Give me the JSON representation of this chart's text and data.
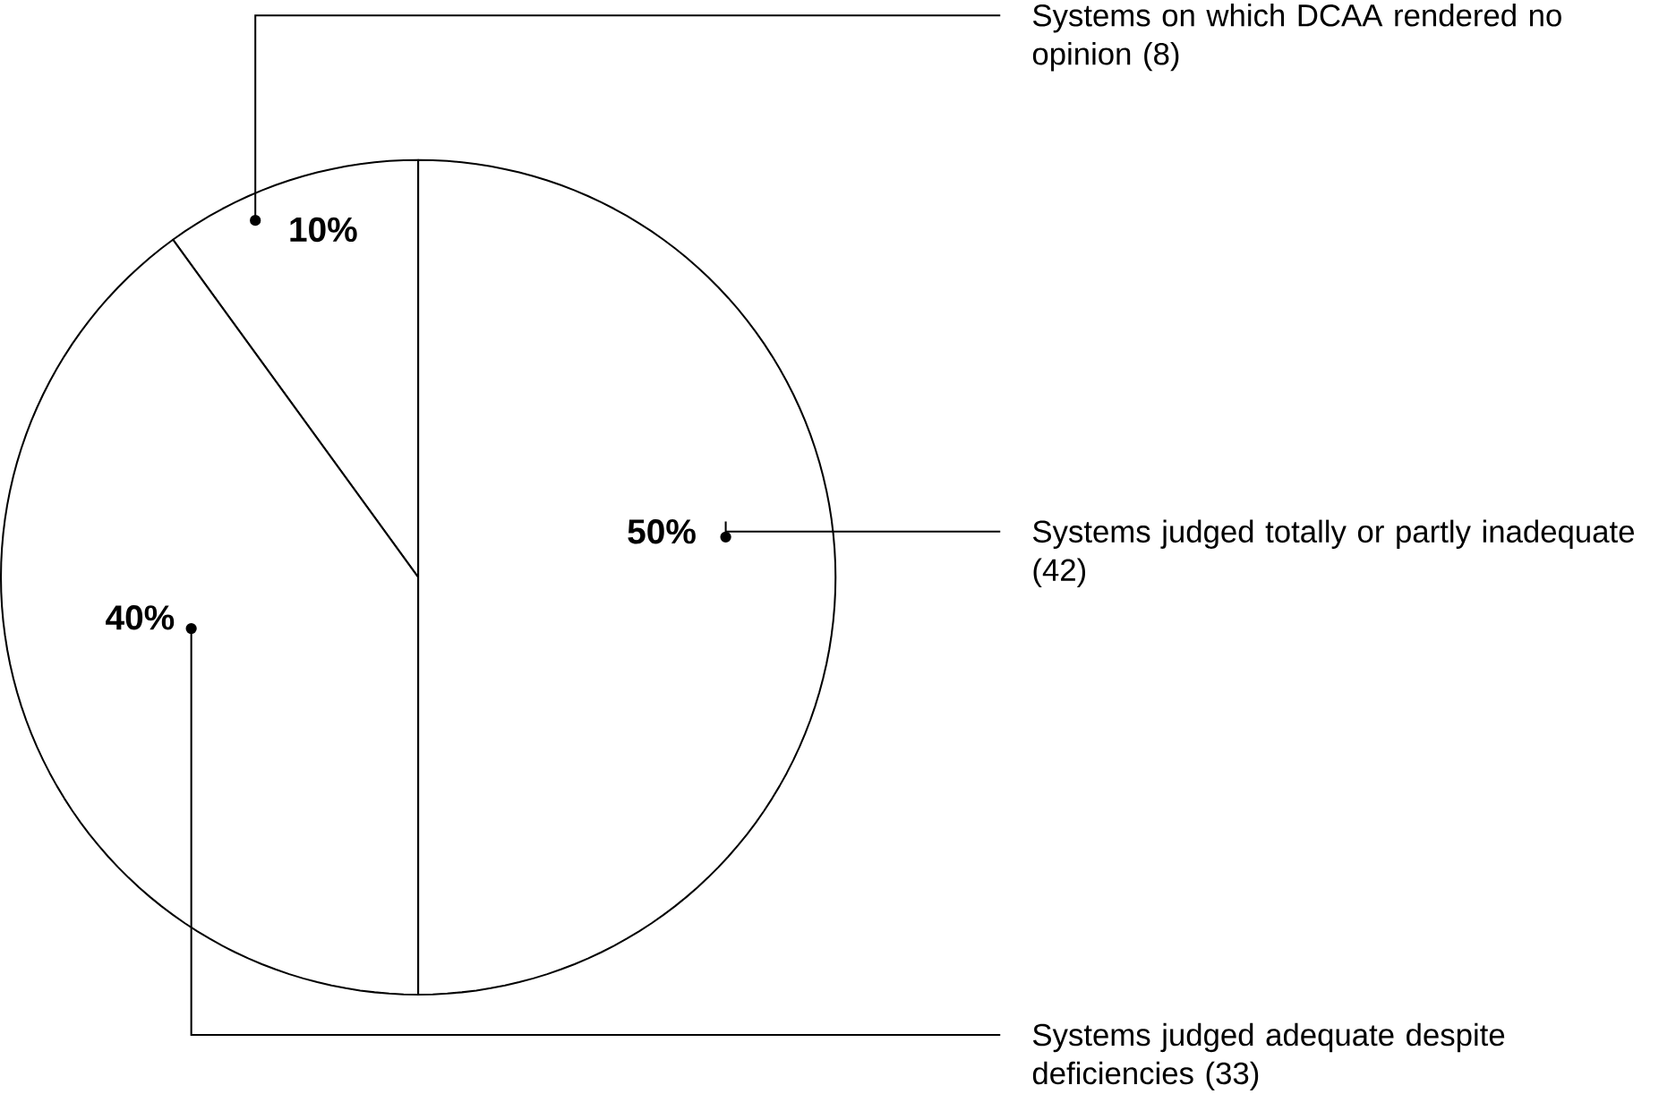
{
  "chart_data": {
    "type": "pie",
    "categories": [
      "Systems on which DCAA rendered no opinion (8)",
      "Systems judged adequate despite deficiencies (33)",
      "Systems judged totally or partly inadequate (42)"
    ],
    "values": [
      10,
      40,
      50
    ],
    "value_labels": [
      "10%",
      "40%",
      "50%"
    ],
    "colors": [
      "#ffffff",
      "#ffffff",
      "#ffffff"
    ]
  }
}
